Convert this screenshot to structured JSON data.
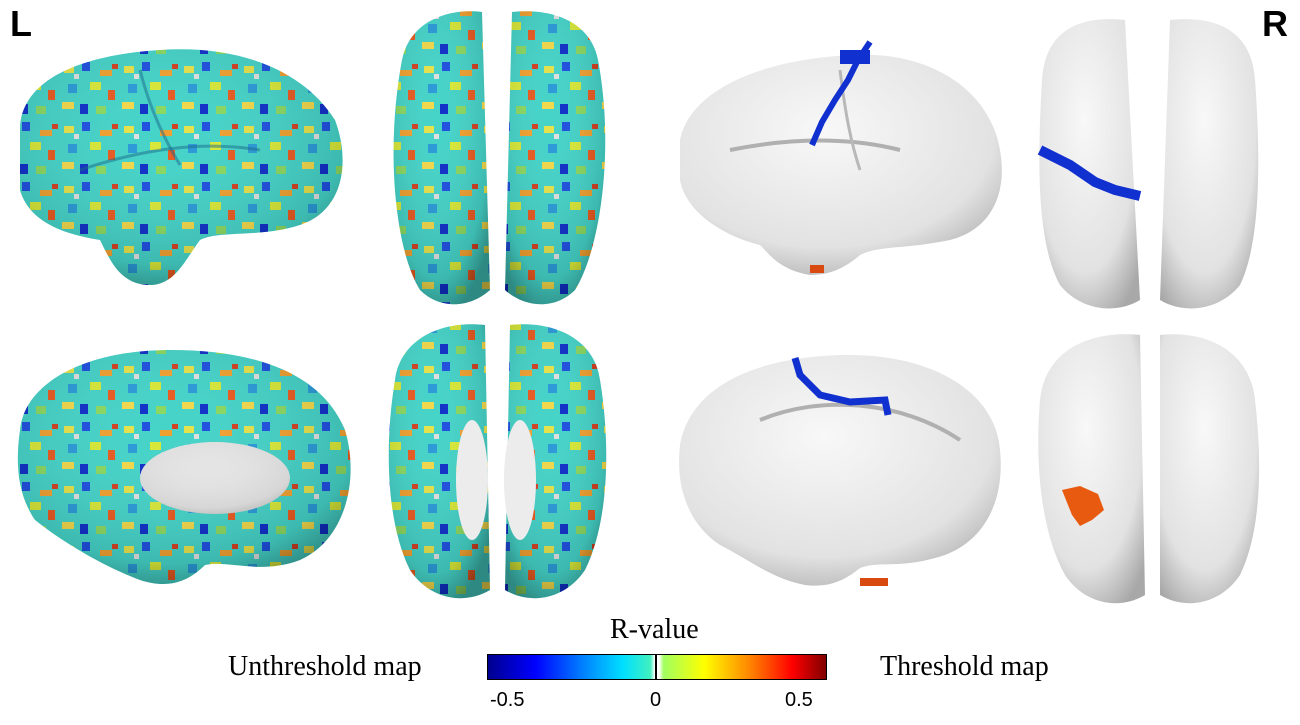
{
  "labels": {
    "left": "L",
    "right": "R"
  },
  "colorbar": {
    "title": "R-value",
    "ticks": [
      "-0.5",
      "0",
      "0.5"
    ],
    "range": [
      -0.6,
      0.6
    ],
    "colormap": [
      "#00008f",
      "#0000ff",
      "#00e0ff",
      "#ffffff",
      "#ffff00",
      "#ff0000",
      "#800000"
    ]
  },
  "panels": {
    "left_caption": "Unthreshold map",
    "right_caption": "Threshold map"
  },
  "colors": {
    "surface_gray": "#e8e8e8",
    "negative_blue": "#0a1fd0",
    "positive_orange": "#e85a10",
    "map_cyan": "#40d8d0",
    "map_yellow": "#e8e040"
  }
}
